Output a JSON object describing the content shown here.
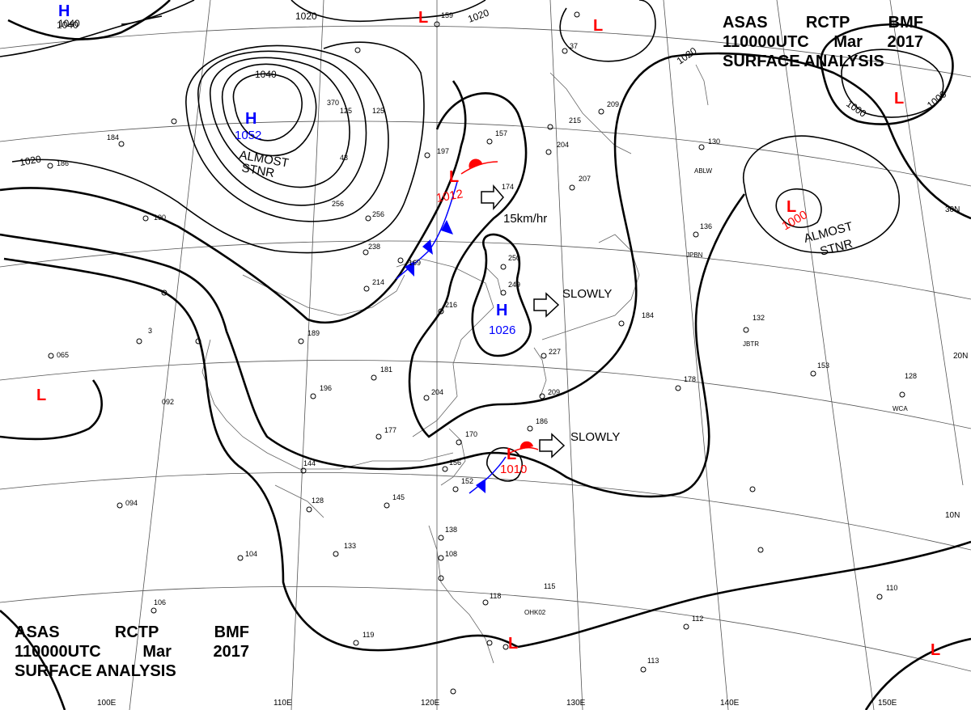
{
  "header": {
    "line1": [
      "ASAS",
      "RCTP",
      "BMF"
    ],
    "line2": [
      "110000UTC",
      "Mar",
      "2017"
    ],
    "line3": "SURFACE ANALYSIS"
  },
  "colors": {
    "high": "#0000ff",
    "low": "#ff0000",
    "line": "#000000",
    "cold_front": "#0000ff",
    "warm_front": "#ff0000"
  },
  "pressure_centers": [
    {
      "type": "H",
      "value": "1052",
      "note": "ALMOST STNR"
    },
    {
      "type": "H",
      "value": "1040",
      "note": ""
    },
    {
      "type": "L",
      "value": "1012",
      "note": ""
    },
    {
      "type": "H",
      "value": "1026",
      "note": ""
    },
    {
      "type": "L",
      "value": "1010",
      "note": ""
    },
    {
      "type": "L",
      "value": "1000",
      "note": "ALMOST STNR"
    },
    {
      "type": "L",
      "value": "",
      "note": ""
    },
    {
      "type": "L",
      "value": "",
      "note": ""
    },
    {
      "type": "L",
      "value": "",
      "note": ""
    },
    {
      "type": "L",
      "value": "",
      "note": ""
    }
  ],
  "movement": [
    {
      "text": "15km/hr"
    },
    {
      "text": "SLOWLY"
    },
    {
      "text": "SLOWLY"
    }
  ],
  "isobar_labels": [
    "1040",
    "1020",
    "1020",
    "1040",
    "1020",
    "1020",
    "1000",
    "1000"
  ],
  "lat_labels": [
    "30N",
    "20N",
    "10N"
  ],
  "lon_labels": [
    "100E",
    "110E",
    "120E",
    "130E",
    "140E",
    "150E"
  ],
  "station_ids": [
    "ABLW",
    "JPBN",
    "JBTR",
    "WCA",
    "OHK02"
  ]
}
